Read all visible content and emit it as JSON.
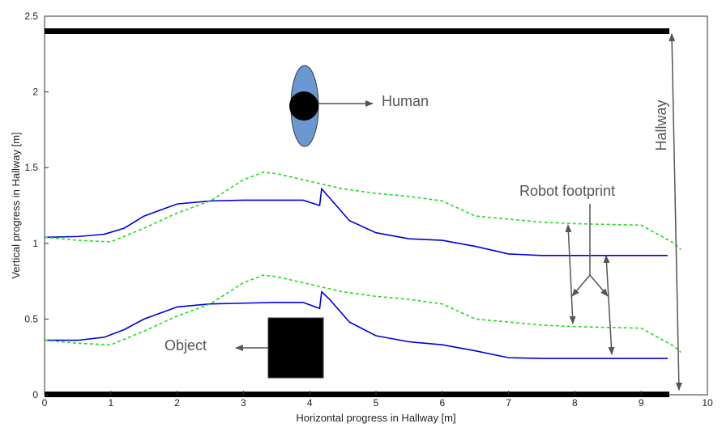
{
  "chart_data": {
    "type": "line",
    "xlabel": "Horizontal progress in Hallway [m]",
    "ylabel": "Vertical progress in Hallway [m]",
    "xlim": [
      0,
      10
    ],
    "xticks": [
      0,
      1,
      2,
      3,
      4,
      5,
      6,
      7,
      8,
      9,
      10
    ],
    "ylim": [
      0,
      2.5
    ],
    "yticks": [
      0,
      0.5,
      1,
      1.5,
      2,
      2.5
    ],
    "annotations": [
      "Human",
      "Object",
      "Robot footprint",
      "Hallway"
    ],
    "series": [
      {
        "color": "#0000dd",
        "dash": false,
        "x": [
          0,
          0.5,
          0.9,
          1.2,
          1.5,
          2,
          2.5,
          3,
          3.5,
          3.9,
          4.15,
          4.18,
          4.3,
          4.6,
          5,
          5.5,
          6,
          6.5,
          7,
          7.5,
          8,
          9,
          9.4
        ],
        "values": [
          1.04,
          1.045,
          1.06,
          1.1,
          1.18,
          1.26,
          1.28,
          1.285,
          1.285,
          1.285,
          1.25,
          1.36,
          1.3,
          1.15,
          1.07,
          1.03,
          1.02,
          0.98,
          0.93,
          0.92,
          0.92,
          0.92,
          0.92
        ]
      },
      {
        "color": "#0000dd",
        "dash": false,
        "x": [
          0,
          0.5,
          0.9,
          1.2,
          1.5,
          2,
          2.5,
          3,
          3.5,
          3.9,
          4.15,
          4.18,
          4.3,
          4.6,
          5,
          5.5,
          6,
          6.5,
          7,
          7.5,
          8,
          9,
          9.4
        ],
        "values": [
          0.36,
          0.36,
          0.38,
          0.43,
          0.5,
          0.58,
          0.6,
          0.605,
          0.61,
          0.61,
          0.57,
          0.68,
          0.63,
          0.48,
          0.39,
          0.35,
          0.33,
          0.29,
          0.245,
          0.24,
          0.24,
          0.24,
          0.24
        ]
      },
      {
        "color": "#22dd22",
        "dash": true,
        "x": [
          0,
          0.5,
          1,
          1.5,
          2,
          2.5,
          3,
          3.3,
          3.5,
          4,
          4.5,
          5,
          5.5,
          6,
          6.5,
          7,
          7.5,
          8,
          9,
          9.5,
          9.6
        ],
        "values": [
          1.04,
          1.02,
          1.01,
          1.1,
          1.2,
          1.28,
          1.42,
          1.47,
          1.46,
          1.41,
          1.36,
          1.33,
          1.31,
          1.28,
          1.18,
          1.16,
          1.14,
          1.13,
          1.12,
          1.0,
          0.96
        ]
      },
      {
        "color": "#22dd22",
        "dash": true,
        "x": [
          0,
          0.5,
          1,
          1.5,
          2,
          2.5,
          3,
          3.3,
          3.5,
          4,
          4.5,
          5,
          5.5,
          6,
          6.5,
          7,
          7.5,
          8,
          9,
          9.5,
          9.6
        ],
        "values": [
          0.36,
          0.34,
          0.33,
          0.42,
          0.52,
          0.6,
          0.74,
          0.79,
          0.78,
          0.73,
          0.68,
          0.65,
          0.63,
          0.6,
          0.5,
          0.48,
          0.46,
          0.45,
          0.44,
          0.32,
          0.28
        ]
      }
    ]
  }
}
